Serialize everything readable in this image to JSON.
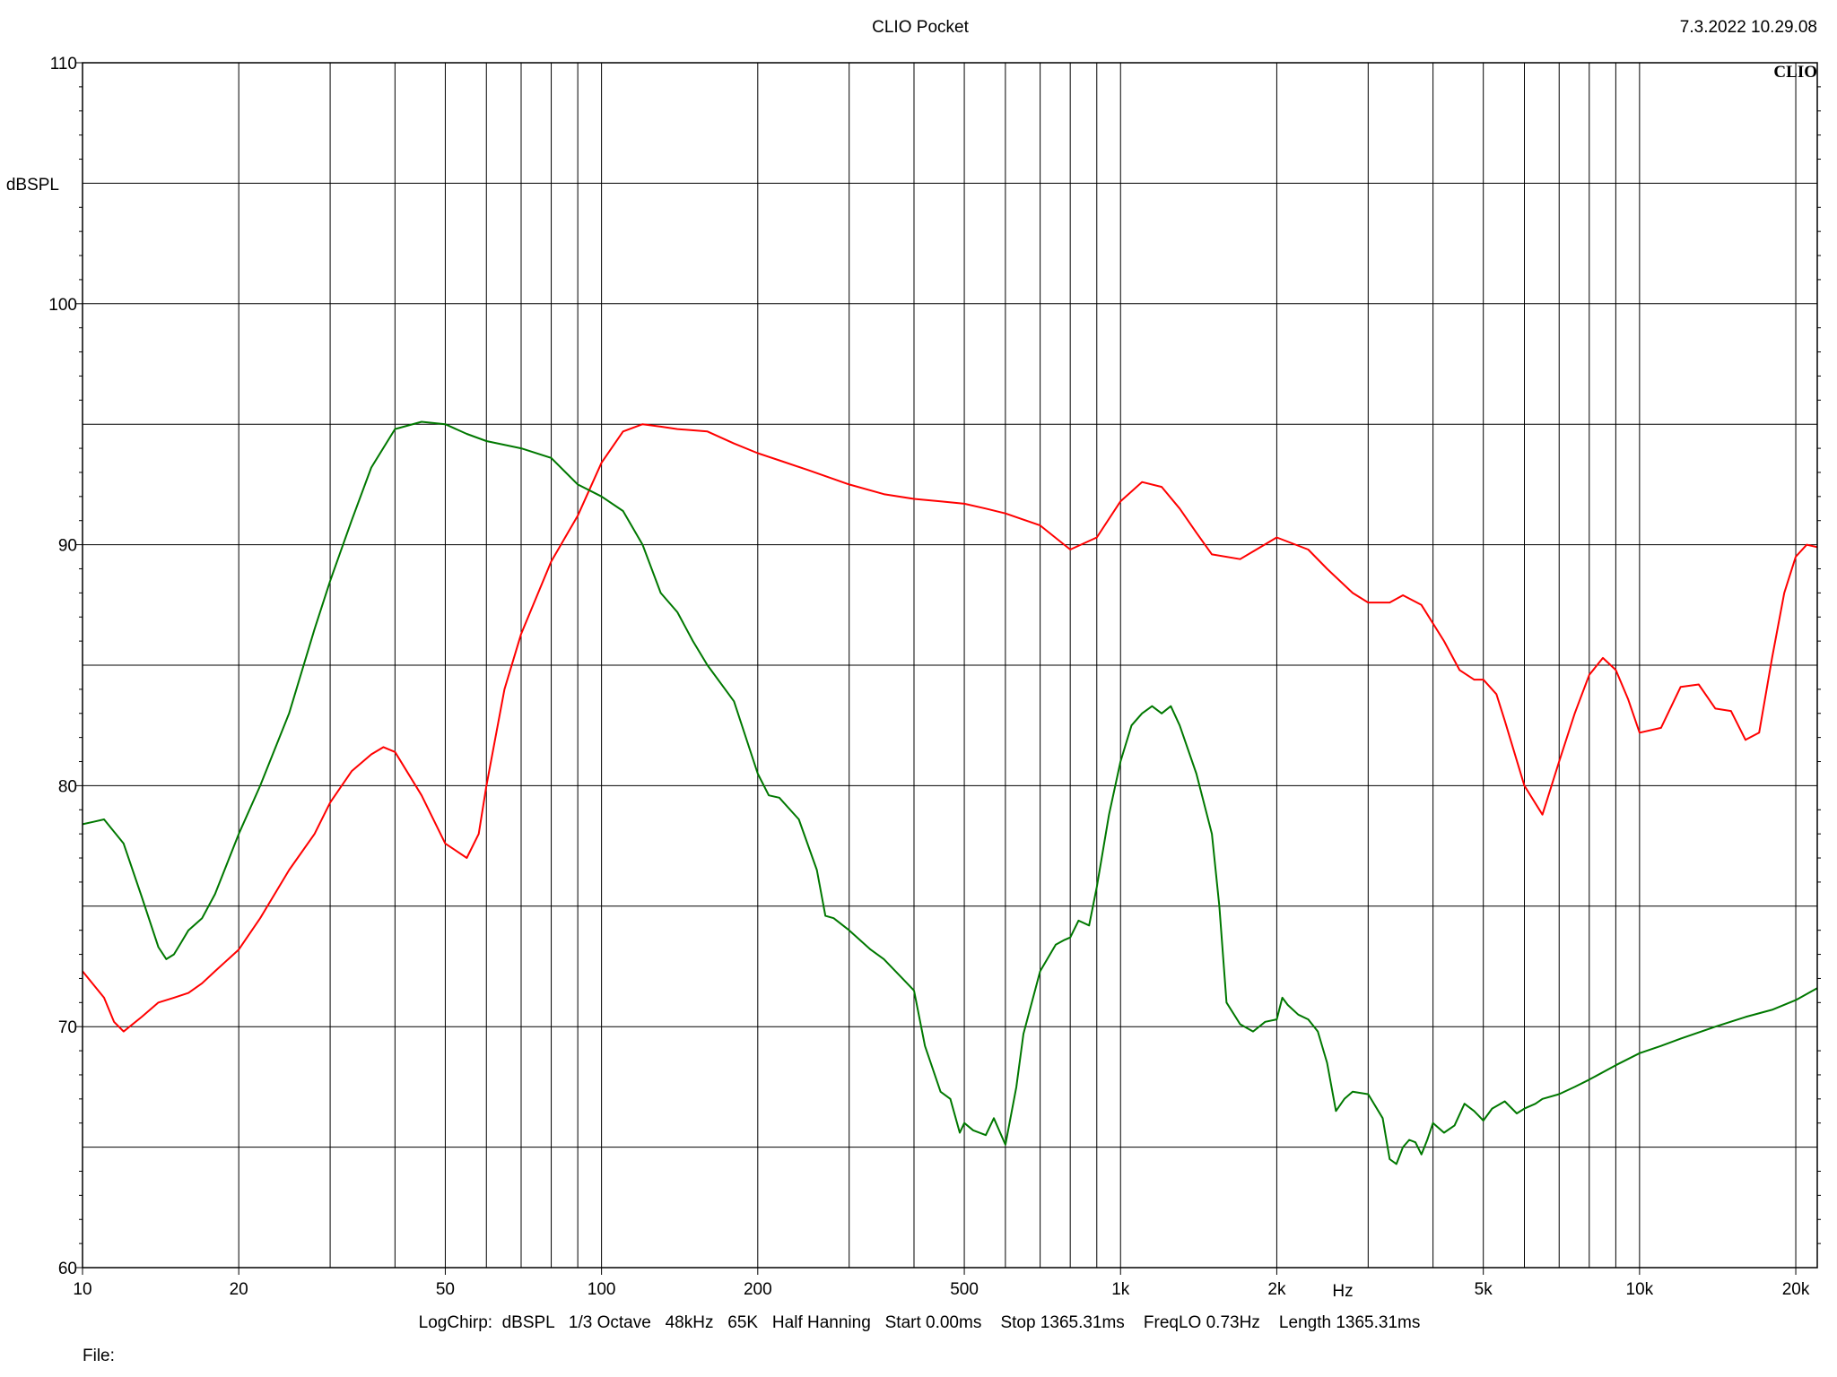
{
  "header": {
    "title": "CLIO Pocket",
    "timestamp": "7.3.2022 10.29.08",
    "logo": "CLIO"
  },
  "footer": {
    "settings": "LogChirp:  dBSPL   1/3 Octave   48kHz   65K   Half Hanning   Start 0.00ms    Stop 1365.31ms    FreqLO 0.73Hz    Length 1365.31ms",
    "file_label": "File:"
  },
  "colors": {
    "background": "#ffffff",
    "grid": "#000000",
    "red_trace": "#ff0000",
    "green_trace": "#007800"
  },
  "chart_data": {
    "type": "line",
    "title": "CLIO Pocket",
    "ylabel": "dBSPL",
    "xlabel": "Hz",
    "xscale": "log",
    "xlim": [
      10,
      22000
    ],
    "ylim": [
      60,
      110
    ],
    "grid": true,
    "y_ticks": [
      {
        "value": 110,
        "label": "110"
      },
      {
        "value": 100,
        "label": "100"
      },
      {
        "value": 90,
        "label": "90"
      },
      {
        "value": 80,
        "label": "80"
      },
      {
        "value": 70,
        "label": "70"
      },
      {
        "value": 60,
        "label": "60"
      }
    ],
    "y_gridlines": [
      60,
      65,
      70,
      75,
      80,
      85,
      90,
      95,
      100,
      105,
      110
    ],
    "x_ticks": [
      {
        "value": 10,
        "label": "10"
      },
      {
        "value": 20,
        "label": "20"
      },
      {
        "value": 50,
        "label": "50"
      },
      {
        "value": 100,
        "label": "100"
      },
      {
        "value": 200,
        "label": "200"
      },
      {
        "value": 500,
        "label": "500"
      },
      {
        "value": 1000,
        "label": "1k"
      },
      {
        "value": 2000,
        "label": "2k"
      },
      {
        "value": 5000,
        "label": "5k"
      },
      {
        "value": 10000,
        "label": "10k"
      },
      {
        "value": 20000,
        "label": "20k"
      }
    ],
    "x_gridlines": [
      20,
      30,
      40,
      50,
      60,
      70,
      80,
      90,
      100,
      200,
      300,
      400,
      500,
      600,
      700,
      800,
      900,
      1000,
      2000,
      3000,
      4000,
      5000,
      6000,
      7000,
      8000,
      9000,
      10000,
      20000
    ],
    "series": [
      {
        "color": "#ff0000",
        "x": [
          10,
          11,
          11.5,
          12,
          13,
          14,
          15,
          16,
          17,
          18,
          20,
          22,
          25,
          28,
          30,
          33,
          36,
          38,
          40,
          45,
          50,
          55,
          58,
          60,
          65,
          70,
          80,
          90,
          100,
          110,
          120,
          130,
          140,
          160,
          180,
          200,
          220,
          250,
          300,
          350,
          400,
          450,
          500,
          550,
          600,
          700,
          800,
          900,
          1000,
          1100,
          1200,
          1300,
          1400,
          1500,
          1700,
          2000,
          2300,
          2500,
          2800,
          3000,
          3300,
          3500,
          3800,
          4200,
          4500,
          4800,
          5000,
          5300,
          5500,
          6000,
          6500,
          7000,
          7500,
          8000,
          8500,
          9000,
          9500,
          10000,
          11000,
          12000,
          13000,
          14000,
          15000,
          16000,
          17000,
          18000,
          19000,
          20000,
          21000,
          22000
        ],
        "y": [
          72.3,
          71.2,
          70.2,
          69.8,
          70.4,
          71.0,
          71.2,
          71.4,
          71.8,
          72.3,
          73.2,
          74.5,
          76.5,
          78.0,
          79.3,
          80.6,
          81.3,
          81.6,
          81.4,
          79.6,
          77.6,
          77.0,
          78.0,
          80.0,
          84.0,
          86.3,
          89.3,
          91.2,
          93.4,
          94.7,
          95.0,
          94.9,
          94.8,
          94.7,
          94.2,
          93.8,
          93.5,
          93.1,
          92.5,
          92.1,
          91.9,
          91.8,
          91.7,
          91.5,
          91.3,
          90.8,
          89.8,
          90.3,
          91.8,
          92.6,
          92.4,
          91.5,
          90.5,
          89.6,
          89.4,
          90.3,
          89.8,
          89.0,
          88.0,
          87.6,
          87.6,
          87.9,
          87.5,
          86.0,
          84.8,
          84.4,
          84.4,
          83.8,
          82.7,
          80.0,
          78.8,
          81.0,
          83.0,
          84.6,
          85.3,
          84.8,
          83.6,
          82.2,
          82.4,
          84.1,
          84.2,
          83.2,
          83.1,
          81.9,
          82.2,
          85.3,
          88.0,
          89.5,
          90.0,
          89.9
        ]
      },
      {
        "color": "#007800",
        "x": [
          10,
          10.5,
          11,
          12,
          13,
          14,
          14.5,
          15,
          15.5,
          16,
          17,
          18,
          20,
          22,
          25,
          28,
          30,
          33,
          36,
          40,
          45,
          50,
          55,
          60,
          70,
          80,
          90,
          100,
          110,
          120,
          130,
          140,
          150,
          160,
          180,
          200,
          210,
          220,
          240,
          260,
          270,
          280,
          300,
          330,
          350,
          380,
          400,
          420,
          450,
          470,
          490,
          500,
          520,
          550,
          570,
          600,
          630,
          650,
          700,
          750,
          780,
          800,
          830,
          870,
          900,
          950,
          1000,
          1050,
          1100,
          1150,
          1200,
          1250,
          1300,
          1400,
          1500,
          1550,
          1600,
          1700,
          1800,
          1900,
          2000,
          2050,
          2100,
          2200,
          2300,
          2400,
          2500,
          2600,
          2700,
          2800,
          3000,
          3200,
          3300,
          3400,
          3500,
          3600,
          3700,
          3800,
          3900,
          4000,
          4200,
          4400,
          4600,
          4800,
          5000,
          5200,
          5500,
          5800,
          6000,
          6300,
          6500,
          7000,
          7500,
          8000,
          9000,
          10000,
          11000,
          12000,
          14000,
          16000,
          18000,
          20000,
          22000
        ],
        "y": [
          78.4,
          78.5,
          78.6,
          77.6,
          75.4,
          73.3,
          72.8,
          73.0,
          73.5,
          74.0,
          74.5,
          75.5,
          78.0,
          80.0,
          83.0,
          86.5,
          88.5,
          91.0,
          93.2,
          94.8,
          95.1,
          95.0,
          94.6,
          94.3,
          94.0,
          93.6,
          92.5,
          92.0,
          91.4,
          90.0,
          88.0,
          87.2,
          86.0,
          85.0,
          83.5,
          80.5,
          79.6,
          79.5,
          78.6,
          76.5,
          74.6,
          74.5,
          74.0,
          73.2,
          72.8,
          72.0,
          71.5,
          69.2,
          67.3,
          67.0,
          65.6,
          66.0,
          65.7,
          65.5,
          66.2,
          65.1,
          67.5,
          69.7,
          72.3,
          73.4,
          73.6,
          73.7,
          74.4,
          74.2,
          75.8,
          78.8,
          81.0,
          82.5,
          83.0,
          83.3,
          83.0,
          83.3,
          82.5,
          80.5,
          78.0,
          75.0,
          71.0,
          70.1,
          69.8,
          70.2,
          70.3,
          71.2,
          70.9,
          70.5,
          70.3,
          69.8,
          68.5,
          66.5,
          67.0,
          67.3,
          67.2,
          66.2,
          64.5,
          64.3,
          65.0,
          65.3,
          65.2,
          64.7,
          65.3,
          66.0,
          65.6,
          65.9,
          66.8,
          66.5,
          66.1,
          66.6,
          66.9,
          66.4,
          66.6,
          66.8,
          67.0,
          67.2,
          67.5,
          67.8,
          68.4,
          68.9,
          69.2,
          69.5,
          70.0,
          70.4,
          70.7,
          71.1,
          71.6
        ]
      }
    ]
  }
}
